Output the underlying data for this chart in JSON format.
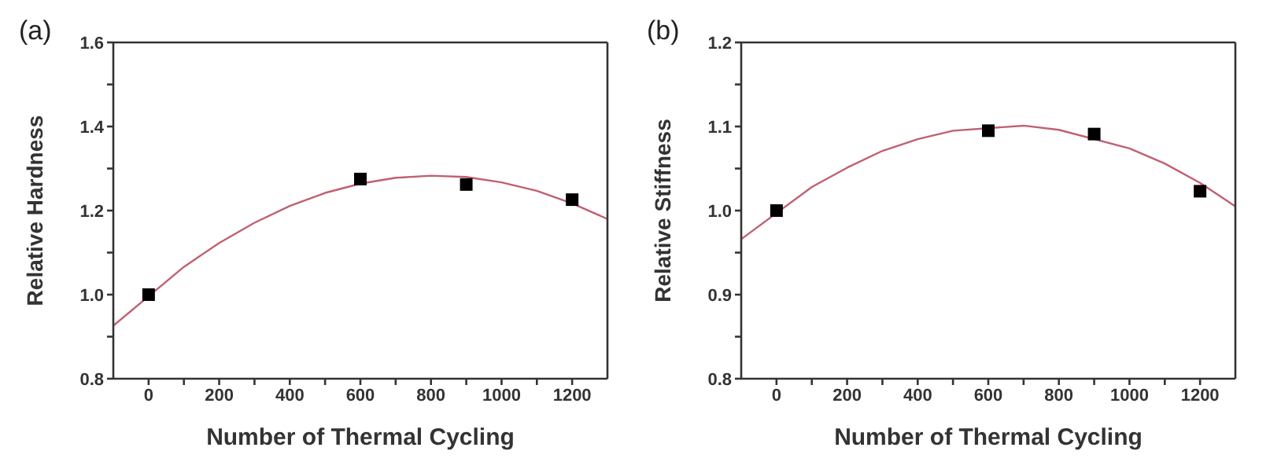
{
  "chart_data": [
    {
      "type": "scatter",
      "title": "(a)",
      "xlabel": "Number of Thermal Cycling",
      "ylabel": "Relative Hardness",
      "xlim": [
        -100,
        1300
      ],
      "xticks": [
        0,
        {
          "value": 100,
          "label": null
        },
        200,
        {
          "value": 300,
          "label": null
        },
        400,
        {
          "value": 500,
          "label": null
        },
        600,
        {
          "value": 700,
          "label": null
        },
        800,
        {
          "value": 900,
          "label": null
        },
        1000,
        {
          "value": 1100,
          "label": null
        },
        1200
      ],
      "ylim": [
        0.8,
        1.6
      ],
      "yticks": [
        0.8,
        {
          "value": 0.9,
          "label": null
        },
        {
          "value": 1.0,
          "label": "1.0"
        },
        {
          "value": 1.1,
          "label": null
        },
        1.2,
        {
          "value": 1.3,
          "label": null
        },
        1.4,
        {
          "value": 1.5,
          "label": null
        },
        1.6
      ],
      "series": [
        {
          "type": "scatter",
          "color": "#000000",
          "marker": "square",
          "x": [
            0,
            600,
            900,
            1200
          ],
          "values": [
            1.0,
            1.275,
            1.262,
            1.226
          ]
        },
        {
          "type": "line",
          "color": "#c06070",
          "marker": "none",
          "line_style": "solid",
          "x": [
            -100,
            100,
            200,
            300,
            400,
            500,
            600,
            700,
            800,
            900,
            1000,
            1100,
            1200,
            1300
          ],
          "values": [
            0.926,
            1.066,
            1.123,
            1.171,
            1.211,
            1.242,
            1.264,
            1.278,
            1.283,
            1.28,
            1.267,
            1.247,
            1.217,
            1.18
          ]
        }
      ]
    },
    {
      "type": "scatter",
      "title": "(b)",
      "xlabel": "Number of Thermal Cycling",
      "ylabel": "Relative Stiffness",
      "xlim": [
        -100,
        1300
      ],
      "xticks": [
        0,
        {
          "value": 100,
          "label": null
        },
        200,
        {
          "value": 300,
          "label": null
        },
        400,
        {
          "value": 500,
          "label": null
        },
        600,
        {
          "value": 700,
          "label": null
        },
        800,
        {
          "value": 900,
          "label": null
        },
        1000,
        {
          "value": 1100,
          "label": null
        },
        1200
      ],
      "ylim": [
        0.8,
        1.2
      ],
      "yticks": [
        0.8,
        {
          "value": 0.85,
          "label": null
        },
        0.9,
        {
          "value": 0.95,
          "label": null
        },
        {
          "value": 1.0,
          "label": "1.0"
        },
        {
          "value": 1.05,
          "label": null
        },
        1.1,
        {
          "value": 1.15,
          "label": null
        },
        1.2
      ],
      "series": [
        {
          "type": "scatter",
          "color": "#000000",
          "marker": "square",
          "x": [
            0,
            600,
            900,
            1200
          ],
          "values": [
            1.0,
            1.095,
            1.091,
            1.023
          ]
        },
        {
          "type": "line",
          "color": "#c06070",
          "marker": "none",
          "line_style": "solid",
          "x": [
            -100,
            100,
            200,
            300,
            400,
            500,
            700,
            800,
            1000,
            1100,
            1200,
            1300
          ],
          "values": [
            0.966,
            1.028,
            1.051,
            1.071,
            1.085,
            1.095,
            1.101,
            1.096,
            1.074,
            1.056,
            1.033,
            1.005
          ]
        }
      ]
    }
  ]
}
